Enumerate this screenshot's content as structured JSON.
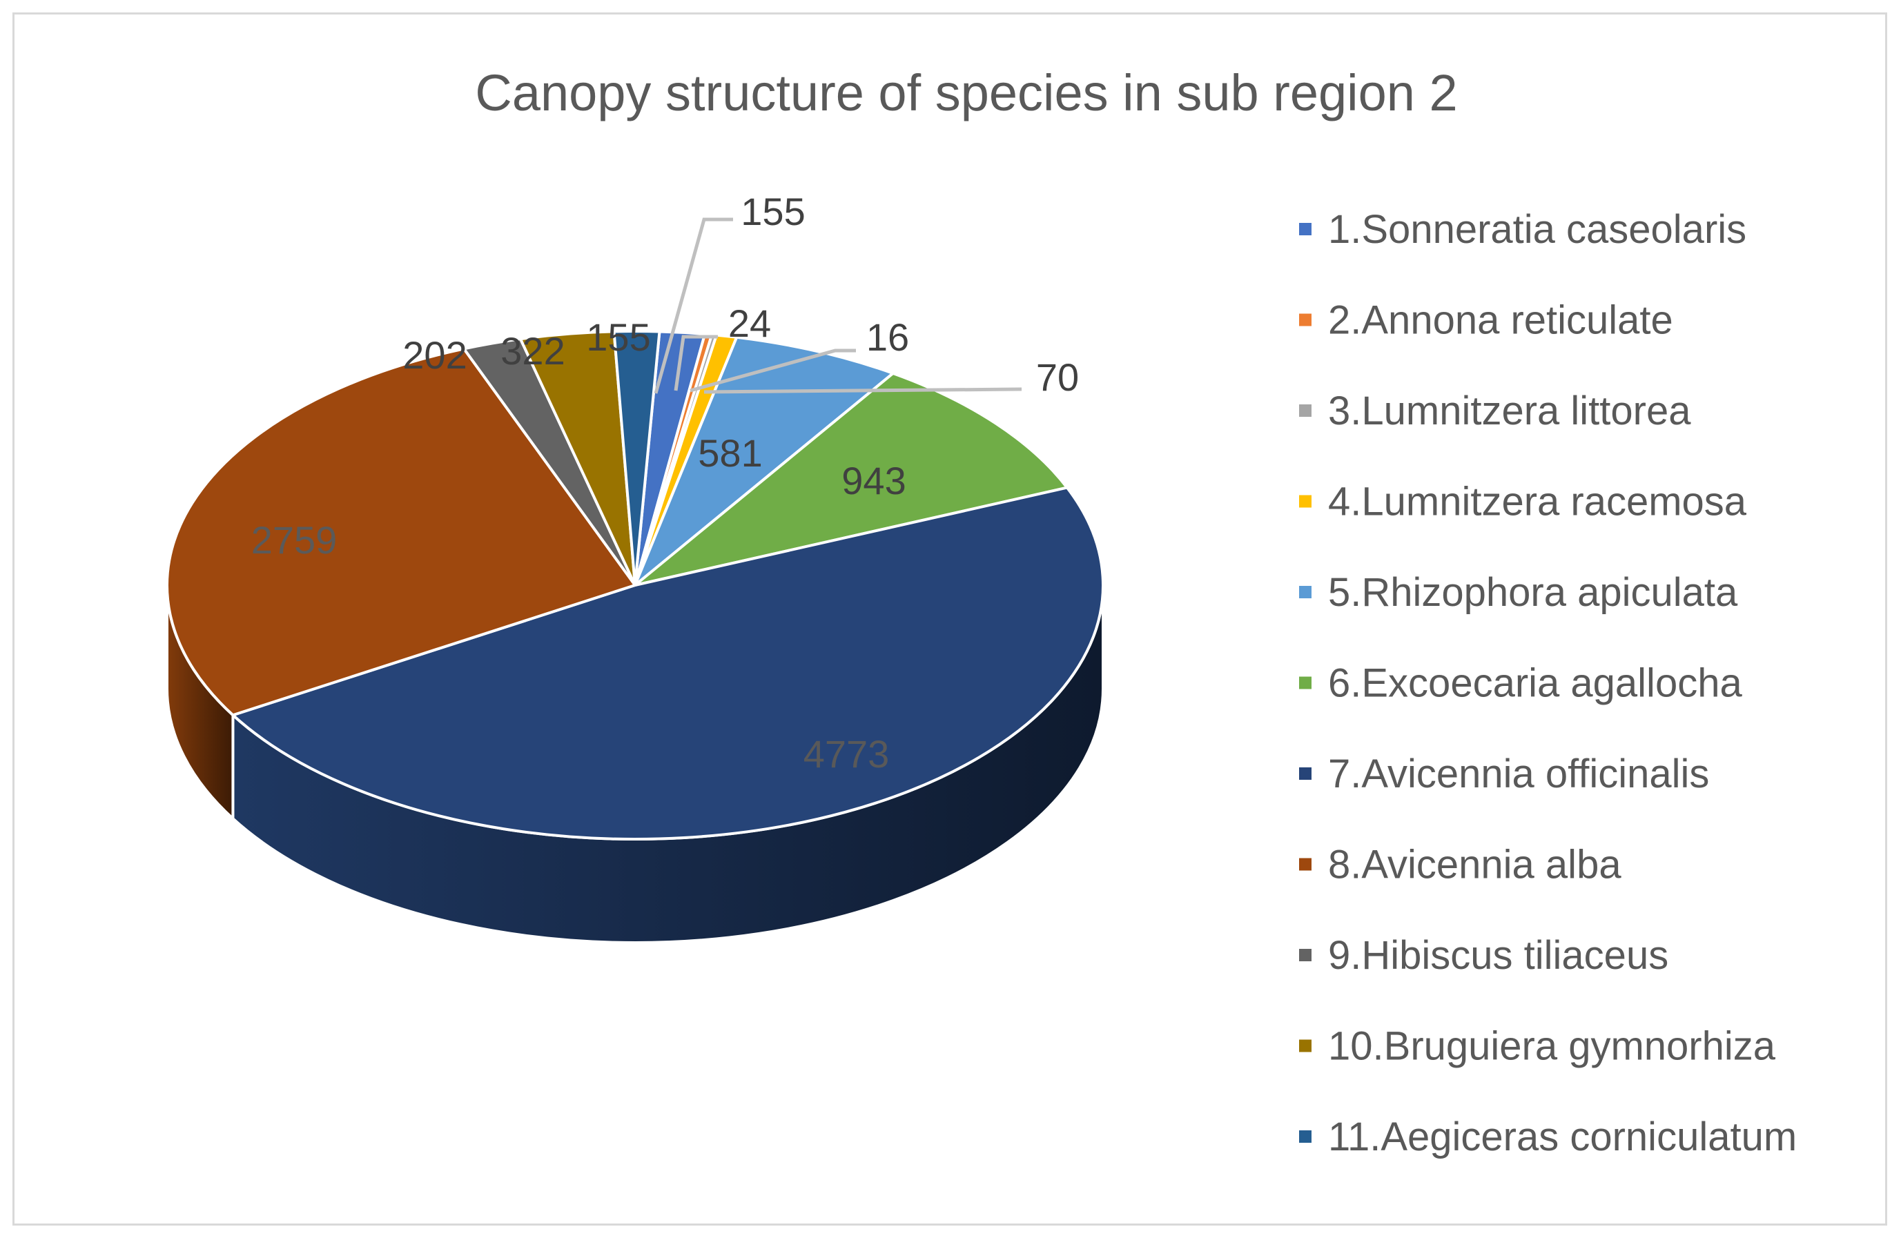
{
  "chart_data": {
    "type": "pie",
    "style": "3d",
    "title": "Canopy structure of species in sub region 2",
    "legend_position": "right",
    "slices": [
      {
        "label": "1.Sonneratia caseolaris",
        "value": 155,
        "value_label": "155",
        "color": "#4472c4"
      },
      {
        "label": "2.Annona reticulate",
        "value": 24,
        "value_label": "24",
        "color": "#ed7d31"
      },
      {
        "label": "3.Lumnitzera littorea",
        "value": 16,
        "value_label": "16",
        "color": "#a5a5a5"
      },
      {
        "label": "4.Lumnitzera racemosa",
        "value": 70,
        "value_label": "70",
        "color": "#ffc000"
      },
      {
        "label": "5.Rhizophora apiculata",
        "value": 581,
        "value_label": "581",
        "color": "#5b9bd5"
      },
      {
        "label": "6.Excoecaria agallocha",
        "value": 943,
        "value_label": "943",
        "color": "#70ad47"
      },
      {
        "label": "7.Avicennia officinalis",
        "value": 4773,
        "value_label": "4773",
        "color": "#264478"
      },
      {
        "label": "8.Avicennia alba",
        "value": 2759,
        "value_label": "2759",
        "color": "#9e480e"
      },
      {
        "label": "9.Hibiscus tiliaceus",
        "value": 202,
        "value_label": "202",
        "color": "#636363"
      },
      {
        "label": "10.Bruguiera gymnorhiza",
        "value": 322,
        "value_label": "322",
        "color": "#997300"
      },
      {
        "label": "11.Aegiceras corniculatum",
        "value": 155,
        "value_label": "155",
        "color": "#255e91"
      }
    ]
  }
}
